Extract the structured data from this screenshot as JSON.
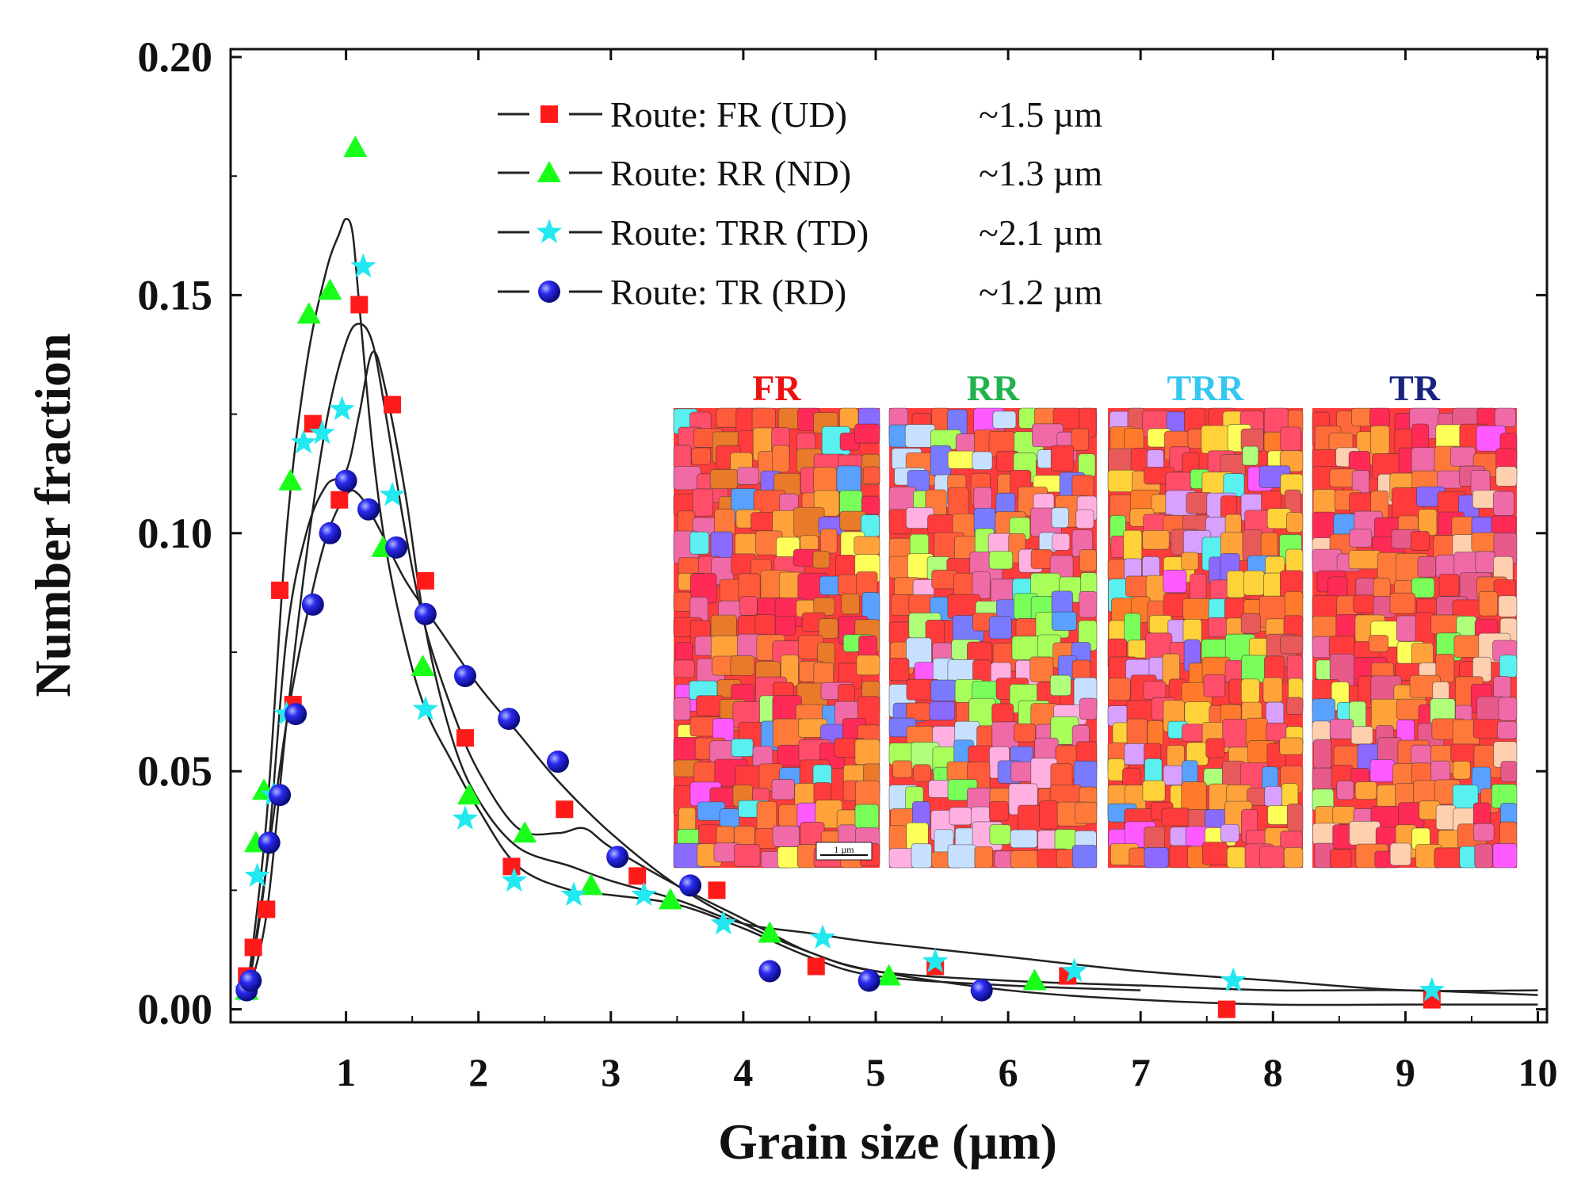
{
  "chart_data": {
    "type": "scatter",
    "xlabel": "Grain size (µm)",
    "ylabel": "Number fraction",
    "xlim": [
      0.1,
      10
    ],
    "ylim": [
      -0.003,
      0.2
    ],
    "xticks": [
      1,
      2,
      3,
      4,
      5,
      6,
      7,
      8,
      9,
      10
    ],
    "xtick_labels": [
      "1",
      "2",
      "3",
      "4",
      "5",
      "6",
      "7",
      "8",
      "9",
      "10"
    ],
    "yticks": [
      0.0,
      0.05,
      0.1,
      0.15,
      0.2
    ],
    "ytick_labels": [
      "0.00",
      "0.05",
      "0.10",
      "0.15",
      "0.20"
    ],
    "grid": false,
    "legend_position": "top-center",
    "series": [
      {
        "name": "Route: FR (UD)",
        "size_label": "~1.5 µm",
        "marker": "square",
        "color": "#ff1a1a",
        "x": [
          0.25,
          0.3,
          0.4,
          0.5,
          0.6,
          0.75,
          0.95,
          1.1,
          1.35,
          1.6,
          1.9,
          2.25,
          2.65,
          3.2,
          3.8,
          4.55,
          5.45,
          6.45,
          7.65,
          9.2
        ],
        "y": [
          0.007,
          0.013,
          0.021,
          0.088,
          0.064,
          0.123,
          0.107,
          0.148,
          0.127,
          0.09,
          0.057,
          0.03,
          0.042,
          0.028,
          0.025,
          0.009,
          0.009,
          0.007,
          0.0,
          0.002
        ]
      },
      {
        "name": "Route: RR (ND)",
        "size_label": "~1.3 µm",
        "marker": "triangle",
        "color": "#1aff1a",
        "x": [
          0.25,
          0.32,
          0.38,
          0.58,
          0.72,
          0.88,
          1.07,
          1.28,
          1.58,
          1.93,
          2.35,
          2.85,
          3.45,
          4.2,
          5.1,
          6.2
        ],
        "y": [
          0.004,
          0.035,
          0.046,
          0.111,
          0.146,
          0.151,
          0.181,
          0.097,
          0.072,
          0.045,
          0.037,
          0.026,
          0.023,
          0.016,
          0.007,
          0.006
        ]
      },
      {
        "name": "Route: TRR (TD)",
        "size_label": "~2.1 µm",
        "marker": "star",
        "color": "#22e8f0",
        "x": [
          0.25,
          0.33,
          0.45,
          0.55,
          0.68,
          0.82,
          0.97,
          1.13,
          1.35,
          1.6,
          1.9,
          2.27,
          2.72,
          3.25,
          3.85,
          4.6,
          5.45,
          6.5,
          7.7,
          9.2
        ],
        "y": [
          0.004,
          0.028,
          0.045,
          0.062,
          0.119,
          0.121,
          0.126,
          0.156,
          0.108,
          0.063,
          0.04,
          0.027,
          0.024,
          0.024,
          0.018,
          0.015,
          0.01,
          0.008,
          0.006,
          0.004
        ]
      },
      {
        "name": "Route: TR (RD)",
        "size_label": "~1.2 µm",
        "marker": "circle",
        "color": "#1a1aee",
        "x": [
          0.25,
          0.28,
          0.42,
          0.5,
          0.62,
          0.75,
          0.88,
          1.0,
          1.17,
          1.38,
          1.6,
          1.9,
          2.23,
          2.6,
          3.05,
          3.6,
          4.2,
          4.95,
          5.8
        ],
        "y": [
          0.004,
          0.006,
          0.035,
          0.045,
          0.062,
          0.085,
          0.1,
          0.111,
          0.105,
          0.097,
          0.083,
          0.07,
          0.061,
          0.052,
          0.032,
          0.026,
          0.008,
          0.006,
          0.004
        ]
      }
    ],
    "fit_curves": [
      {
        "x": [
          0.25,
          0.4,
          0.55,
          0.7,
          0.85,
          1.0,
          1.1,
          1.2,
          1.3,
          1.45,
          1.6,
          1.8,
          2.0,
          2.3,
          2.6,
          2.8,
          3.0,
          3.5,
          4.0,
          4.5,
          5.0,
          6.0,
          7.0,
          8.0,
          9.0,
          10.0
        ],
        "y": [
          0.002,
          0.02,
          0.06,
          0.095,
          0.123,
          0.14,
          0.144,
          0.14,
          0.125,
          0.1,
          0.08,
          0.063,
          0.05,
          0.038,
          0.037,
          0.038,
          0.034,
          0.026,
          0.019,
          0.012,
          0.008,
          0.004,
          0.002,
          0.001,
          0.001,
          0.001
        ]
      },
      {
        "x": [
          0.25,
          0.4,
          0.55,
          0.7,
          0.85,
          0.95,
          1.0,
          1.05,
          1.1,
          1.2,
          1.3,
          1.45,
          1.6,
          1.8,
          2.0,
          2.3,
          2.7,
          3.0,
          3.5,
          4.0,
          4.5,
          5.0,
          6.0,
          7.0
        ],
        "y": [
          0.003,
          0.04,
          0.1,
          0.135,
          0.155,
          0.163,
          0.166,
          0.163,
          0.148,
          0.118,
          0.097,
          0.077,
          0.063,
          0.052,
          0.042,
          0.03,
          0.025,
          0.024,
          0.022,
          0.017,
          0.011,
          0.007,
          0.005,
          0.004
        ]
      },
      {
        "x": [
          0.25,
          0.4,
          0.55,
          0.7,
          0.85,
          1.0,
          1.1,
          1.2,
          1.3,
          1.45,
          1.6,
          1.8,
          2.0,
          2.3,
          2.7,
          3.0,
          3.5,
          4.0,
          4.5,
          5.0,
          6.0,
          7.0,
          8.0,
          9.0,
          10.0
        ],
        "y": [
          0.002,
          0.03,
          0.078,
          0.1,
          0.11,
          0.113,
          0.125,
          0.138,
          0.13,
          0.108,
          0.08,
          0.057,
          0.044,
          0.034,
          0.03,
          0.027,
          0.023,
          0.018,
          0.016,
          0.014,
          0.011,
          0.008,
          0.006,
          0.004,
          0.004
        ]
      },
      {
        "x": [
          0.25,
          0.4,
          0.55,
          0.7,
          0.85,
          1.0,
          1.1,
          1.25,
          1.45,
          1.7,
          2.0,
          2.3,
          2.6,
          3.0,
          3.5,
          4.0,
          4.5,
          5.0,
          6.0,
          7.0,
          8.0,
          9.0,
          10.0
        ],
        "y": [
          0.002,
          0.03,
          0.06,
          0.082,
          0.099,
          0.108,
          0.108,
          0.101,
          0.09,
          0.08,
          0.068,
          0.058,
          0.048,
          0.037,
          0.026,
          0.018,
          0.012,
          0.008,
          0.006,
          0.005,
          0.004,
          0.004,
          0.003
        ]
      }
    ],
    "inset_labels": [
      {
        "text": "FR",
        "color": "#ee1111"
      },
      {
        "text": "RR",
        "color": "#22b24c"
      },
      {
        "text": "TRR",
        "color": "#33c8f0"
      },
      {
        "text": "TR",
        "color": "#1a237e"
      }
    ],
    "scale_bar_label": "1 µm"
  }
}
